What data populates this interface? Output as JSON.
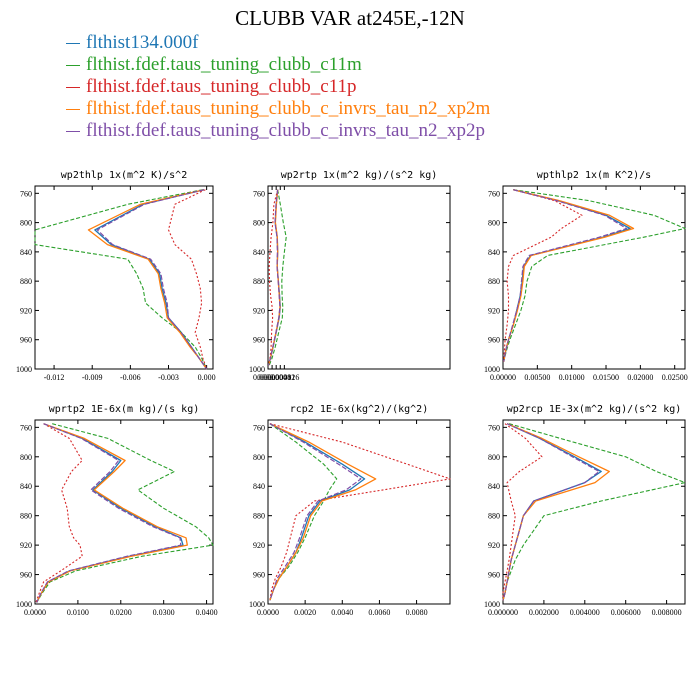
{
  "title": "CLUBB VAR at245E,-12N",
  "legend": [
    {
      "label": "flthist134.000f",
      "color": "#1f77b4"
    },
    {
      "label": "flthist.fdef.taus_tuning_clubb_c11m",
      "color": "#2ca02c"
    },
    {
      "label": "flthist.fdef.taus_tuning_clubb_c11p",
      "color": "#d62728"
    },
    {
      "label": "flthist.fdef.taus_tuning_clubb_c_invrs_tau_n2_xp2m",
      "color": "#ff7f0e"
    },
    {
      "label": "flthist.fdef.taus_tuning_clubb_c_invrs_tau_n2_xp2p",
      "color": "#7f4fa8"
    }
  ],
  "chart_data": [
    {
      "type": "line",
      "title": "wp2thlp  1x(m^2 K)/s^2",
      "xlim": [
        -0.0135,
        0.0005
      ],
      "xticks": [
        -0.012,
        -0.009,
        -0.006,
        -0.003,
        0.0
      ],
      "xtick_labels": [
        "-0.012",
        "-0.009",
        "-0.006",
        "-0.003",
        "0.000"
      ],
      "ylim": [
        1000,
        750
      ],
      "yticks": [
        760,
        800,
        840,
        880,
        920,
        960,
        1000
      ],
      "y": [
        755,
        775,
        810,
        830,
        850,
        870,
        890,
        910,
        930,
        950,
        970,
        985,
        1000
      ],
      "series": [
        {
          "values": [
            -0.0002,
            -0.005,
            -0.0088,
            -0.0075,
            -0.0045,
            -0.0037,
            -0.0035,
            -0.0032,
            -0.003,
            -0.002,
            -0.0012,
            -0.0006,
            0.0
          ]
        },
        {
          "values": [
            -0.0003,
            -0.0062,
            -0.0135,
            -0.0135,
            -0.0062,
            -0.0055,
            -0.005,
            -0.0048,
            -0.0035,
            -0.002,
            -0.0009,
            -0.0004,
            0.0
          ]
        },
        {
          "values": [
            -0.0001,
            -0.0025,
            -0.003,
            -0.0025,
            -0.0012,
            -0.0008,
            -0.0005,
            -0.0004,
            -0.0006,
            -0.0009,
            -0.0005,
            -0.0003,
            0.0
          ]
        },
        {
          "values": [
            -0.0002,
            -0.0052,
            -0.0093,
            -0.0078,
            -0.0046,
            -0.0038,
            -0.0036,
            -0.0033,
            -0.0031,
            -0.0021,
            -0.0013,
            -0.0006,
            0.0
          ]
        },
        {
          "values": [
            -0.0002,
            -0.0049,
            -0.0086,
            -0.0074,
            -0.0044,
            -0.0036,
            -0.0034,
            -0.0031,
            -0.003,
            -0.002,
            -0.0012,
            -0.0006,
            0.0
          ]
        }
      ]
    },
    {
      "type": "line",
      "title": "wp2rtp  1x(m^2 kg)/(s^2 kg)",
      "xlim": [
        0,
        0.000178
      ],
      "xticks": [
        0,
        4e-06,
        8e-06,
        1.2e-05,
        1.6e-05
      ],
      "xtick_labels": [
        "0.000000",
        "0.000004",
        "0.000008",
        "0.000012",
        "0.000016"
      ],
      "ylim": [
        1000,
        750
      ],
      "yticks": [
        760,
        800,
        840,
        880,
        920,
        960,
        1000
      ],
      "y": [
        755,
        775,
        800,
        820,
        840,
        860,
        880,
        900,
        915,
        930,
        950,
        970,
        985,
        995
      ],
      "series": [
        {
          "values": [
            9.5e-06,
            8e-06,
            7e-06,
            9e-06,
            9.5e-06,
            9e-06,
            1.02e-05,
            1.13e-05,
            1.2e-05,
            1.1e-05,
            8e-06,
            5e-06,
            2.5e-06,
            5e-07
          ]
        },
        {
          "values": [
            9.5e-06,
            1.2e-05,
            1.5e-05,
            1.78e-05,
            1.6e-05,
            1.45e-05,
            1.35e-05,
            1.38e-05,
            1.45e-05,
            1.4e-05,
            1.05e-05,
            7e-06,
            4e-06,
            1.2e-06
          ]
        },
        {
          "values": [
            9.5e-06,
            5.8e-06,
            4.8e-06,
            3e-06,
            2e-06,
            1.2e-06,
            1.5e-06,
            2.5e-06,
            4e-06,
            4.5e-06,
            3.5e-06,
            3e-06,
            2e-06,
            5e-07
          ]
        },
        {
          "values": [
            9.5e-06,
            8.2e-06,
            7.2e-06,
            9.1e-06,
            9.5e-06,
            9e-06,
            1.01e-05,
            1.11e-05,
            1.17e-05,
            1.07e-05,
            7.8e-06,
            4.8e-06,
            2.4e-06,
            5e-07
          ]
        },
        {
          "values": [
            9.5e-06,
            7.8e-06,
            6.8e-06,
            8.8e-06,
            9.2e-06,
            8.8e-06,
            1e-05,
            1.1e-05,
            1.16e-05,
            1.06e-05,
            7.7e-06,
            4.7e-06,
            2.3e-06,
            5e-07
          ]
        }
      ]
    },
    {
      "type": "line",
      "title": "wpthlp2  1x(m K^2)/s",
      "xlim": [
        0,
        0.0265
      ],
      "xticks": [
        0,
        0.005,
        0.01,
        0.015,
        0.02,
        0.025
      ],
      "xtick_labels": [
        "0.00000",
        "0.00500",
        "0.01000",
        "0.01500",
        "0.02000",
        "0.02500"
      ],
      "ylim": [
        1000,
        750
      ],
      "yticks": [
        760,
        800,
        840,
        880,
        920,
        960,
        1000
      ],
      "y": [
        755,
        770,
        790,
        808,
        820,
        845,
        860,
        880,
        900,
        920,
        940,
        960,
        975,
        990
      ],
      "series": [
        {
          "values": [
            0.0015,
            0.008,
            0.015,
            0.0185,
            0.0145,
            0.004,
            0.003,
            0.0028,
            0.0025,
            0.002,
            0.0015,
            0.0008,
            0.0004,
            0.0001
          ]
        },
        {
          "values": [
            0.0015,
            0.0125,
            0.022,
            0.0265,
            0.0205,
            0.0065,
            0.0042,
            0.0035,
            0.0032,
            0.0026,
            0.0018,
            0.001,
            0.0005,
            0.0001
          ]
        },
        {
          "values": [
            0.0015,
            0.0075,
            0.0115,
            0.0085,
            0.007,
            0.0015,
            0.0008,
            0.0006,
            0.0008,
            0.0008,
            0.0006,
            0.0003,
            0.0002,
            0.0001
          ]
        },
        {
          "values": [
            0.0015,
            0.0082,
            0.0155,
            0.019,
            0.0148,
            0.0041,
            0.0031,
            0.0029,
            0.0026,
            0.0021,
            0.0015,
            0.0008,
            0.0004,
            0.0001
          ]
        },
        {
          "values": [
            0.0015,
            0.0078,
            0.0148,
            0.018,
            0.014,
            0.0038,
            0.0029,
            0.0027,
            0.0025,
            0.002,
            0.0014,
            0.0008,
            0.0004,
            0.0001
          ]
        }
      ]
    },
    {
      "type": "line",
      "title": "wprtp2  1E-6x(m kg)/(s kg)",
      "xlim": [
        0,
        0.0415
      ],
      "xticks": [
        0,
        0.01,
        0.02,
        0.03,
        0.04
      ],
      "xtick_labels": [
        "0.0000",
        "0.0100",
        "0.0200",
        "0.0300",
        "0.0400"
      ],
      "ylim": [
        1000,
        750
      ],
      "yticks": [
        760,
        800,
        840,
        880,
        920,
        960,
        1000
      ],
      "y": [
        755,
        775,
        805,
        820,
        845,
        870,
        895,
        910,
        920,
        935,
        955,
        970,
        985,
        998
      ],
      "series": [
        {
          "values": [
            0.002,
            0.011,
            0.02,
            0.018,
            0.0135,
            0.02,
            0.028,
            0.034,
            0.0345,
            0.022,
            0.008,
            0.003,
            0.0015,
            0.0004
          ]
        },
        {
          "values": [
            0.004,
            0.017,
            0.027,
            0.0325,
            0.024,
            0.03,
            0.0375,
            0.0405,
            0.0415,
            0.025,
            0.0095,
            0.0035,
            0.0017,
            0.0004
          ]
        },
        {
          "values": [
            0.002,
            0.008,
            0.011,
            0.0085,
            0.0062,
            0.0075,
            0.008,
            0.009,
            0.0105,
            0.011,
            0.006,
            0.002,
            0.001,
            0.0002
          ]
        },
        {
          "values": [
            0.002,
            0.0115,
            0.021,
            0.0185,
            0.0138,
            0.0205,
            0.0285,
            0.0352,
            0.0355,
            0.0225,
            0.0082,
            0.0031,
            0.0015,
            0.0004
          ]
        },
        {
          "values": [
            0.002,
            0.0108,
            0.0195,
            0.0175,
            0.013,
            0.0195,
            0.0275,
            0.0338,
            0.034,
            0.0215,
            0.0078,
            0.0029,
            0.0014,
            0.0004
          ]
        }
      ]
    },
    {
      "type": "line",
      "title": "rcp2  1E-6x(kg^2)/(kg^2)",
      "xlim": [
        0,
        0.0098
      ],
      "xticks": [
        0,
        0.002,
        0.004,
        0.006,
        0.008
      ],
      "xtick_labels": [
        "0.0000",
        "0.0020",
        "0.0040",
        "0.0060",
        "0.0080"
      ],
      "ylim": [
        1000,
        750
      ],
      "yticks": [
        760,
        800,
        840,
        880,
        920,
        960,
        1000
      ],
      "y": [
        755,
        780,
        810,
        830,
        845,
        860,
        880,
        910,
        930,
        950,
        965,
        980,
        995
      ],
      "series": [
        {
          "values": [
            0.0001,
            0.002,
            0.004,
            0.0052,
            0.0044,
            0.0028,
            0.0022,
            0.0018,
            0.0015,
            0.001,
            0.0006,
            0.0003,
            0.0001
          ]
        },
        {
          "values": [
            0.0001,
            0.0015,
            0.003,
            0.0037,
            0.0033,
            0.003,
            0.0025,
            0.002,
            0.0016,
            0.0011,
            0.0006,
            0.0003,
            0.0001
          ]
        },
        {
          "values": [
            0.0001,
            0.004,
            0.0075,
            0.0098,
            0.0062,
            0.0025,
            0.0015,
            0.0012,
            0.001,
            0.0007,
            0.0004,
            0.0002,
            0.0001
          ]
        },
        {
          "values": [
            0.0001,
            0.0022,
            0.0043,
            0.0058,
            0.0047,
            0.0029,
            0.0023,
            0.0019,
            0.0015,
            0.001,
            0.0006,
            0.0003,
            0.0001
          ]
        },
        {
          "values": [
            0.0001,
            0.0019,
            0.0038,
            0.005,
            0.0042,
            0.0027,
            0.0021,
            0.0017,
            0.0014,
            0.0009,
            0.0005,
            0.0003,
            0.0001
          ]
        }
      ]
    },
    {
      "type": "line",
      "title": "wp2rcp  1E-3x(m^2 kg)/(s^2 kg)",
      "xlim": [
        0,
        0.0089
      ],
      "xticks": [
        0,
        0.002,
        0.004,
        0.006,
        0.008
      ],
      "xtick_labels": [
        "0.000000",
        "0.002000",
        "0.004000",
        "0.006000",
        "0.008000"
      ],
      "ylim": [
        1000,
        750
      ],
      "yticks": [
        760,
        800,
        840,
        880,
        920,
        960,
        1000
      ],
      "y": [
        755,
        775,
        800,
        820,
        835,
        860,
        880,
        900,
        920,
        940,
        955,
        970,
        985,
        995
      ],
      "series": [
        {
          "values": [
            0.0002,
            0.0018,
            0.0035,
            0.0048,
            0.004,
            0.0015,
            0.001,
            0.0008,
            0.0006,
            0.0004,
            0.0003,
            0.0002,
            0.0001,
            0.0
          ]
        },
        {
          "values": [
            0.0003,
            0.0028,
            0.006,
            0.0075,
            0.0089,
            0.0048,
            0.002,
            0.0015,
            0.001,
            0.0006,
            0.0004,
            0.0002,
            0.0001,
            0.0
          ]
        },
        {
          "values": [
            0.0001,
            0.0011,
            0.0019,
            0.0008,
            0.0002,
            0.0004,
            0.0006,
            0.0005,
            0.0004,
            0.0003,
            0.0002,
            0.0001,
            0.0,
            0.0
          ]
        },
        {
          "values": [
            0.0002,
            0.0019,
            0.0037,
            0.0052,
            0.0045,
            0.0016,
            0.001,
            0.0008,
            0.0006,
            0.0004,
            0.0003,
            0.0002,
            0.0001,
            0.0
          ]
        },
        {
          "values": [
            0.0002,
            0.0018,
            0.0034,
            0.0047,
            0.004,
            0.0015,
            0.001,
            0.0008,
            0.0006,
            0.0004,
            0.0003,
            0.0002,
            0.0001,
            0.0
          ]
        }
      ]
    }
  ]
}
